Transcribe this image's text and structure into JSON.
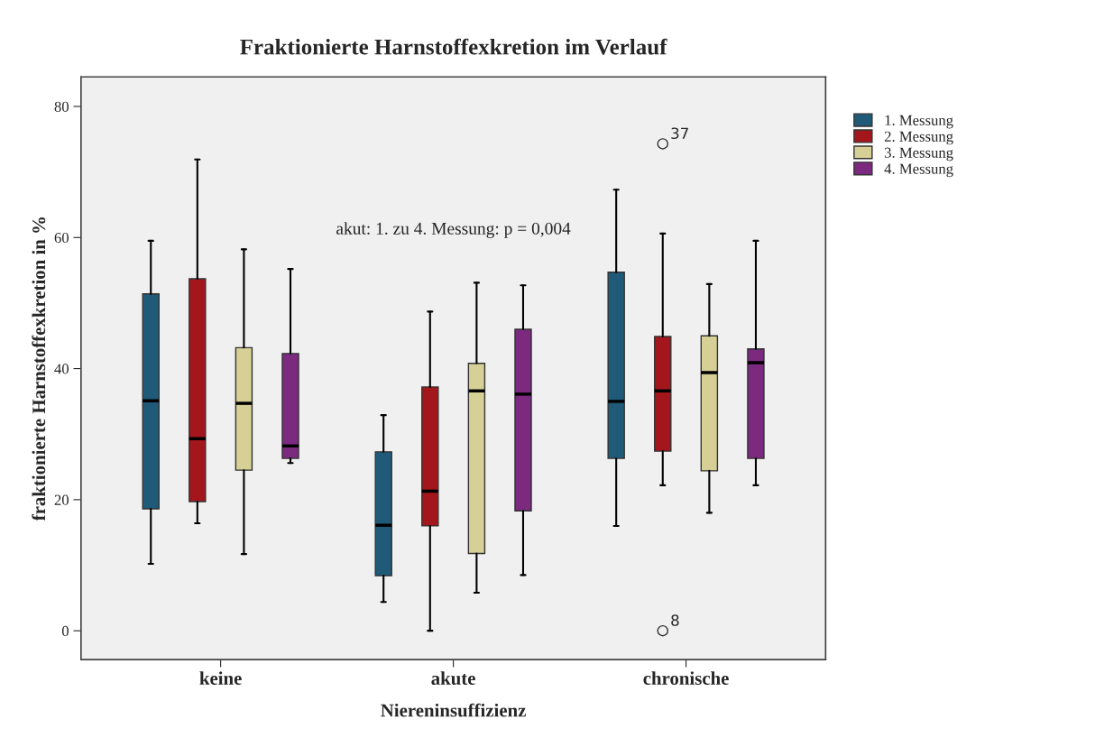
{
  "chart_data": {
    "type": "box",
    "title": "Fraktionierte Harnstoffexkretion im Verlauf",
    "xlabel": "Niereninsuffizienz",
    "ylabel": "fraktionierte Harnstoffexkretion in %",
    "categories": [
      "keine",
      "akute",
      "chronische"
    ],
    "ylim": [
      -4.4,
      84.5
    ],
    "yticks": [
      0,
      20,
      40,
      60,
      80
    ],
    "grid": false,
    "legend": "top right",
    "series": [
      {
        "name": "1. Messung",
        "color": "#1f5b78",
        "boxes": [
          {
            "low": 10.2,
            "q1": 18.6,
            "median": 35.1,
            "q3": 51.4,
            "high": 59.5
          },
          {
            "low": 4.4,
            "q1": 8.4,
            "median": 16.1,
            "q3": 27.3,
            "high": 32.9
          },
          {
            "low": 16.0,
            "q1": 26.3,
            "median": 35.0,
            "q3": 54.7,
            "high": 67.3
          }
        ]
      },
      {
        "name": "2. Messung",
        "color": "#a3171c",
        "boxes": [
          {
            "low": 16.4,
            "q1": 19.7,
            "median": 29.3,
            "q3": 53.7,
            "high": 71.9
          },
          {
            "low": 0.0,
            "q1": 16.0,
            "median": 21.3,
            "q3": 37.2,
            "high": 48.7
          },
          {
            "low": 22.2,
            "q1": 27.4,
            "median": 36.6,
            "q3": 44.9,
            "high": 60.6,
            "outliers": [
              74.3,
              0.0
            ]
          }
        ]
      },
      {
        "name": "3. Messung",
        "color": "#d6d097",
        "boxes": [
          {
            "low": 11.7,
            "q1": 24.5,
            "median": 34.7,
            "q3": 43.2,
            "high": 58.2
          },
          {
            "low": 5.8,
            "q1": 11.8,
            "median": 36.6,
            "q3": 40.8,
            "high": 53.1
          },
          {
            "low": 18.0,
            "q1": 24.4,
            "median": 39.4,
            "q3": 45.0,
            "high": 52.9
          }
        ]
      },
      {
        "name": "4. Messung",
        "color": "#7b2a7f",
        "boxes": [
          {
            "low": 25.6,
            "q1": 26.3,
            "median": 28.2,
            "q3": 42.3,
            "high": 55.2
          },
          {
            "low": 8.5,
            "q1": 18.3,
            "median": 36.1,
            "q3": 46.0,
            "high": 52.7
          },
          {
            "low": 22.2,
            "q1": 26.3,
            "median": 40.9,
            "q3": 43.0,
            "high": 59.5
          }
        ]
      }
    ],
    "annotations": [
      "akut: 1. zu 4. Messung: p = 0,004",
      "37",
      "8"
    ]
  }
}
